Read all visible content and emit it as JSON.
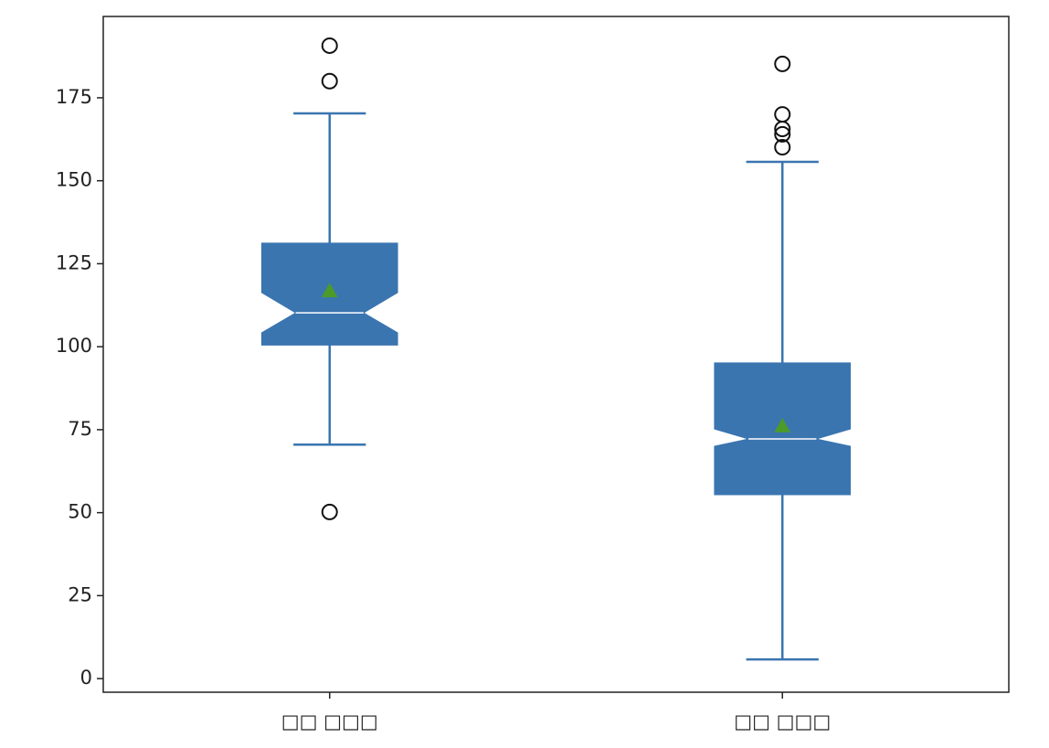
{
  "chart_data": {
    "type": "boxplot",
    "categories": [
      "□□ □□□",
      "□□ □□□"
    ],
    "series": [
      {
        "whisker_low": 70.5,
        "q1": 100.5,
        "notch_low": 104.2,
        "median": 110.2,
        "notch_high": 116.3,
        "q3": 131.2,
        "whisker_high": 170.3,
        "mean": 116.8,
        "outliers": [
          190.7,
          180,
          50.2
        ]
      },
      {
        "whisker_low": 5.8,
        "q1": 55.4,
        "notch_low": 70,
        "median": 72.2,
        "notch_high": 75.2,
        "q3": 95.1,
        "whisker_high": 155.7,
        "mean": 76.1,
        "outliers": [
          185.2,
          170,
          165.6,
          164,
          160.1
        ]
      }
    ],
    "color": "#3a75b0",
    "mean_color": "#4c9a2a",
    "ylim": [
      -4.1,
      199.5
    ],
    "yticks": [
      0,
      25,
      50,
      75,
      100,
      125,
      150,
      175
    ]
  }
}
